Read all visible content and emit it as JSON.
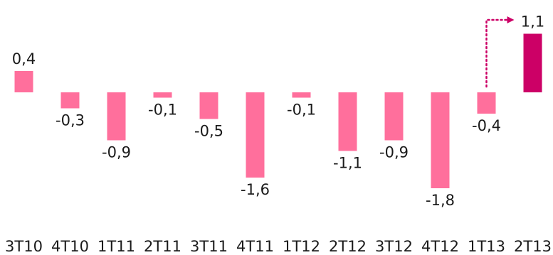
{
  "chart_data": {
    "type": "bar",
    "categories": [
      "3T10",
      "4T10",
      "1T11",
      "2T11",
      "3T11",
      "4T11",
      "1T12",
      "2T12",
      "3T12",
      "4T12",
      "1T13",
      "2T13"
    ],
    "values": [
      0.4,
      -0.3,
      -0.9,
      -0.1,
      -0.5,
      -1.6,
      -0.1,
      -1.1,
      -0.9,
      -1.8,
      -0.4,
      1.1
    ],
    "value_labels": [
      "0,4",
      "-0,3",
      "-0,9",
      "-0,1",
      "-0,5",
      "-1,6",
      "-0,1",
      "-1,1",
      "-0,9",
      "-1,8",
      "-0,4",
      "1,1"
    ],
    "title": "",
    "xlabel": "",
    "ylabel": "",
    "ylim": [
      -1.8,
      1.1
    ],
    "grid": false,
    "colors": {
      "bar": "#ff6f9c",
      "highlight": "#cc0066",
      "arrow": "#cc0066"
    },
    "highlight_index": 11,
    "annotation": {
      "type": "arrow",
      "from_category": "1T13",
      "to_category": "2T13",
      "style": "dotted"
    }
  }
}
